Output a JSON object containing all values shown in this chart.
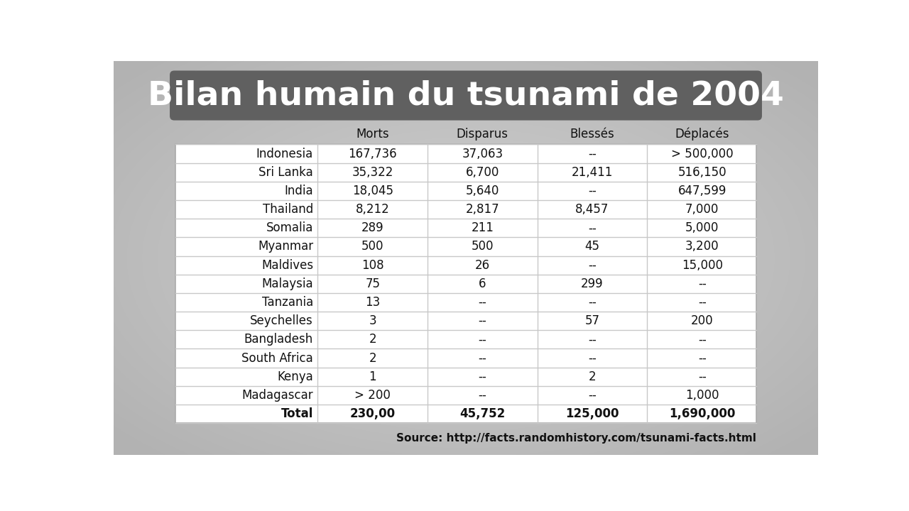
{
  "title": "Bilan humain du tsunami de 2004",
  "title_bg": "#606060",
  "title_color": "#ffffff",
  "source": "Source: http://facts.randomhistory.com/tsunami-facts.html",
  "bg_outer": "#b8bcbc",
  "bg_inner": "#c8cccc",
  "columns": [
    "",
    "Morts",
    "Disparus",
    "Blessés",
    "Déplacés"
  ],
  "rows": [
    [
      "Indonesia",
      "167,736",
      "37,063",
      "--",
      "> 500,000"
    ],
    [
      "Sri Lanka",
      "35,322",
      "6,700",
      "21,411",
      "516,150"
    ],
    [
      "India",
      "18,045",
      "5,640",
      "--",
      "647,599"
    ],
    [
      "Thailand",
      "8,212",
      "2,817",
      "8,457",
      "7,000"
    ],
    [
      "Somalia",
      "289",
      "211",
      "--",
      "5,000"
    ],
    [
      "Myanmar",
      "500",
      "500",
      "45",
      "3,200"
    ],
    [
      "Maldives",
      "108",
      "26",
      "--",
      "15,000"
    ],
    [
      "Malaysia",
      "75",
      "6",
      "299",
      "--"
    ],
    [
      "Tanzania",
      "13",
      "--",
      "--",
      "--"
    ],
    [
      "Seychelles",
      "3",
      "--",
      "57",
      "200"
    ],
    [
      "Bangladesh",
      "2",
      "--",
      "--",
      "--"
    ],
    [
      "South Africa",
      "2",
      "--",
      "--",
      "--"
    ],
    [
      "Kenya",
      "1",
      "--",
      "2",
      "--"
    ],
    [
      "Madagascar",
      "> 200",
      "--",
      "--",
      "1,000"
    ]
  ],
  "total_row": [
    "Total",
    "230,00",
    "45,752",
    "125,000",
    "1,690,000"
  ],
  "header_fontsize": 12,
  "row_fontsize": 12,
  "total_fontsize": 12,
  "title_fontsize": 34,
  "source_fontsize": 11,
  "table_bg": "#ffffff",
  "header_text_color": "#111111",
  "row_text_color": "#111111",
  "total_text_color": "#111111",
  "grid_color": "#c8c8c8",
  "source_color": "#111111",
  "table_border_color": "#aaaaaa"
}
